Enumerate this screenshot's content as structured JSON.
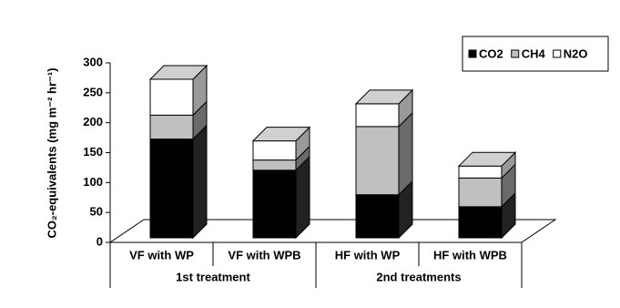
{
  "chart_data": {
    "type": "bar3d_stacked",
    "y_label": "CO₂-equivalents (mg m⁻² hr⁻¹)",
    "categories": [
      "VF with WP",
      "VF with WPB",
      "HF with WP",
      "HF with WPB"
    ],
    "groups": [
      {
        "label": "1st treatment",
        "span": 2
      },
      {
        "label": "2nd treatments",
        "span": 2
      }
    ],
    "series": [
      {
        "name": "CO2",
        "color": "#000000",
        "values": [
          165,
          113,
          72,
          52
        ]
      },
      {
        "name": "CH4",
        "color": "#c0c0c0",
        "values": [
          40,
          17,
          114,
          48
        ]
      },
      {
        "name": "N2O",
        "color": "#ffffff",
        "values": [
          60,
          32,
          38,
          20
        ]
      }
    ],
    "ylim": [
      0,
      300
    ],
    "yticks": [
      0,
      50,
      100,
      150,
      200,
      250,
      300
    ],
    "legend": "top-right"
  }
}
